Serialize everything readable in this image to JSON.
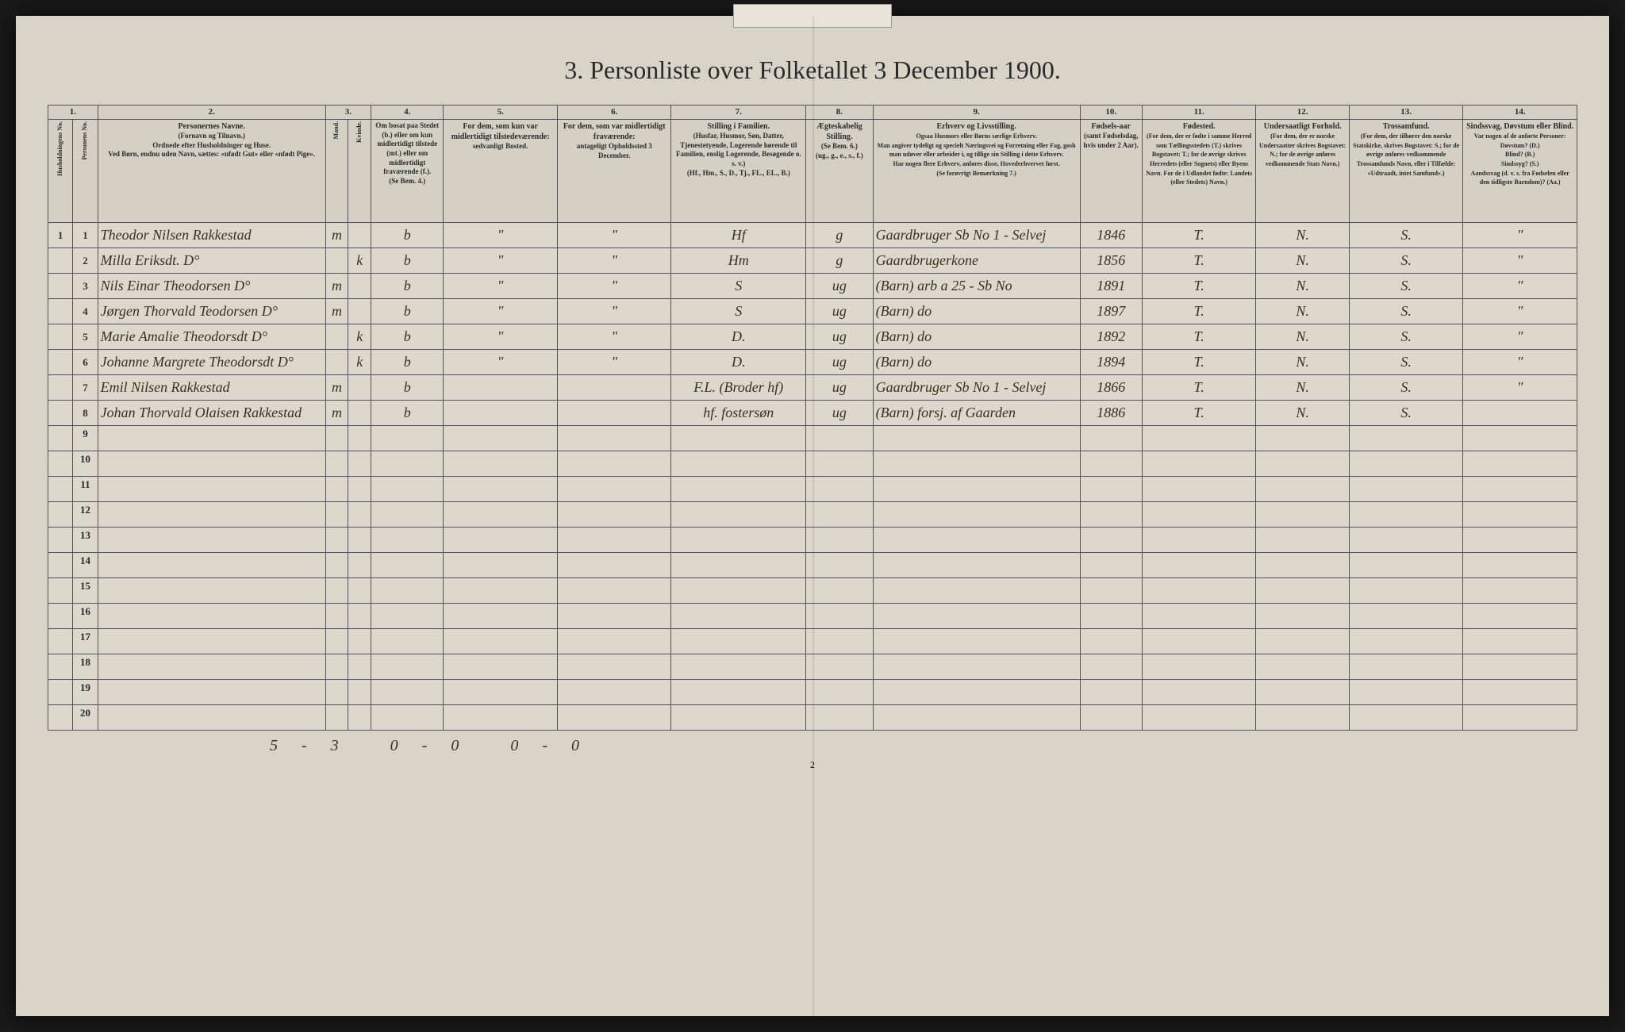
{
  "title": "3. Personliste over Folketallet 3 December 1900.",
  "pageNumber": "2",
  "columnNumbers": [
    "1.",
    "2.",
    "3.",
    "4.",
    "5.",
    "6.",
    "7.",
    "8.",
    "9.",
    "10.",
    "11.",
    "12.",
    "13.",
    "14."
  ],
  "headers": {
    "c1": "Husholdningens No.",
    "c1b": "Personens No.",
    "c2_title": "Personernes Navne.",
    "c2_sub": "(Fornavn og Tilnavn.)\nOrdnede efter Husholdninger og Huse.\nVed Børn, endnu uden Navn, sættes: «nfødt Gut» eller «nfødt Pige».",
    "c3_title": "Kjøn.",
    "c3a": "Mand.",
    "c3b": "Kvinde.",
    "c4_title": "Om bosat paa Stedet (b.) eller om kun midlertidigt tilstede (mt.) eller om midlertidigt fraværende (f.).",
    "c4_sub": "(Se Bem. 4.)",
    "c5_title": "For dem, som kun var midlertidigt tilstedeværende:",
    "c5_sub": "sedvanligt Bosted.",
    "c6_title": "For dem, som var midlertidigt fraværende:",
    "c6_sub": "antageligt Opholdssted 3 December.",
    "c7_title": "Stilling i Familien.",
    "c7_sub": "(Husfar, Husmor, Søn, Datter, Tjenestetyende, Logerende hørende til Familien, enslig Logerende, Besøgende o. s. v.)\n(Hf., Hm., S., D., Tj., FL., EL., B.)",
    "c8_title": "Ægteskabelig Stilling.",
    "c8_sub": "(Se Bem. 6.)\n(ug., g., e., s., f.)",
    "c9_title": "Erhverv og Livsstilling.",
    "c9_sub": "Ogsaa Husmors eller Børns særlige Erhverv.\nMan angiver tydeligt og specielt Næringsvei og Forretning eller Fag, gosh man udøver eller arbeider i, og tillige sin Stilling i dette Erhverv.\nHar nogen flere Erhverv, anføres disse, Hovederhvervet først.\n(Se forøvrigt Bemærkning 7.)",
    "c10_title": "Fødsels-aar",
    "c10_sub": "(samt Fødselsdag, hvis under 2 Aar).",
    "c11_title": "Fødested.",
    "c11_sub": "(For dem, der er fødte i samme Herred som Tællingsstedets (T.) skrives Bogstavet: T.; for de øvrige skrives Herredets (eller Sognets) eller Byens Navn.\nFor de i Udlandet fødte: Landets (eller Stedets) Navn.)",
    "c12_title": "Undersaatligt Forhold.",
    "c12_sub": "(For dem, der er norske Undersaatter skrives Bogstavet: N.; for de øvrige anføres vedkommende Stats Navn.)",
    "c13_title": "Trossamfund.",
    "c13_sub": "(For dem, der tilhører den norske Statskirke, skrives Bogstavet: S.; for de øvrige anføres vedkommende Trossamfunds Navn, eller i Tilfælde: «Udtraadt, intet Samfund».)",
    "c14_title": "Sindssvag, Døvstum eller Blind.",
    "c14_sub": "Var nogen af de anførte Personer:\nDøvstum? (D.)\nBlind? (B.)\nSindssyg? (S.)\nAandssvag (d. v. s. fra Fødselen eller den tidligste Barndom)? (Aa.)"
  },
  "rows": [
    {
      "hh": "1",
      "pn": "1",
      "name": "Theodor Nilsen Rakkestad",
      "m": "m",
      "k": "",
      "res": "b",
      "c5": "\"",
      "c6": "\"",
      "fam": "Hf",
      "mar": "g",
      "occ": "Gaardbruger  Sb No 1 - Selvej",
      "year": "1846",
      "birth": "T.",
      "nat": "N.",
      "rel": "S.",
      "c14": "\""
    },
    {
      "hh": "",
      "pn": "2",
      "name": "Milla Eriksdt.  D°",
      "m": "",
      "k": "k",
      "res": "b",
      "c5": "\"",
      "c6": "\"",
      "fam": "Hm",
      "mar": "g",
      "occ": "Gaardbrugerkone",
      "year": "1856",
      "birth": "T.",
      "nat": "N.",
      "rel": "S.",
      "c14": "\""
    },
    {
      "hh": "",
      "pn": "3",
      "name": "Nils Einar Theodorsen D°",
      "m": "m",
      "k": "",
      "res": "b",
      "c5": "\"",
      "c6": "\"",
      "fam": "S",
      "mar": "ug",
      "occ": "(Barn) arb a 25 - Sb No",
      "year": "1891",
      "birth": "T.",
      "nat": "N.",
      "rel": "S.",
      "c14": "\""
    },
    {
      "hh": "",
      "pn": "4",
      "name": "Jørgen Thorvald Teodorsen D°",
      "m": "m",
      "k": "",
      "res": "b",
      "c5": "\"",
      "c6": "\"",
      "fam": "S",
      "mar": "ug",
      "occ": "(Barn)        do",
      "year": "1897",
      "birth": "T.",
      "nat": "N.",
      "rel": "S.",
      "c14": "\""
    },
    {
      "hh": "",
      "pn": "5",
      "name": "Marie Amalie Theodorsdt D°",
      "m": "",
      "k": "k",
      "res": "b",
      "c5": "\"",
      "c6": "\"",
      "fam": "D.",
      "mar": "ug",
      "occ": "(Barn)        do",
      "year": "1892",
      "birth": "T.",
      "nat": "N.",
      "rel": "S.",
      "c14": "\""
    },
    {
      "hh": "",
      "pn": "6",
      "name": "Johanne Margrete Theodorsdt D°",
      "m": "",
      "k": "k",
      "res": "b",
      "c5": "\"",
      "c6": "\"",
      "fam": "D.",
      "mar": "ug",
      "occ": "(Barn)        do",
      "year": "1894",
      "birth": "T.",
      "nat": "N.",
      "rel": "S.",
      "c14": "\""
    },
    {
      "hh": "",
      "pn": "7",
      "name": "Emil Nilsen Rakkestad",
      "m": "m",
      "k": "",
      "res": "b",
      "c5": "",
      "c6": "",
      "fam": "F.L. (Broder hf)",
      "mar": "ug",
      "occ": "Gaardbruger  Sb No 1 - Selvej",
      "year": "1866",
      "birth": "T.",
      "nat": "N.",
      "rel": "S.",
      "c14": "\""
    },
    {
      "hh": "",
      "pn": "8",
      "name": "Johan Thorvald Olaisen Rakkestad",
      "m": "m",
      "k": "",
      "res": "b",
      "c5": "",
      "c6": "",
      "fam": "hf. fostersøn",
      "mar": "ug",
      "occ": "(Barn) forsj. af Gaarden",
      "year": "1886",
      "birth": "T.",
      "nat": "N.",
      "rel": "S.",
      "c14": ""
    }
  ],
  "emptyRowStart": 9,
  "emptyRowEnd": 20,
  "footerTally": "5-3  0-0  0-0",
  "colors": {
    "pageBackground": "#d8d4c8",
    "tableBackground": "#dcd8cc",
    "border": "#555555",
    "headerBackground": "#d4d0c4",
    "text": "#2a2a2a",
    "handwriting": "#3a3020",
    "outerBackground": "#1a1a1a"
  }
}
